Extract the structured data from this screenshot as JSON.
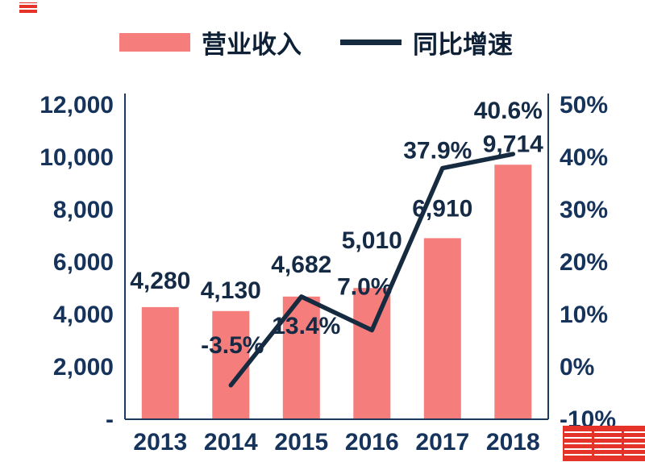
{
  "legend": {
    "items": [
      {
        "label": "营业收入",
        "type": "bar",
        "color": "#f57d7b"
      },
      {
        "label": "同比增速",
        "type": "line",
        "color": "#162b40"
      }
    ]
  },
  "chart_data": {
    "type": "bar+line",
    "categories": [
      "2013",
      "2014",
      "2015",
      "2016",
      "2017",
      "2018"
    ],
    "series": [
      {
        "name": "营业收入",
        "type": "bar",
        "axis": "left",
        "values": [
          4280,
          4130,
          4682,
          5010,
          6910,
          9714
        ],
        "labels": [
          "4,280",
          "4,130",
          "4,682",
          "5,010",
          "6,910",
          "9,714"
        ],
        "color": "#f57d7b"
      },
      {
        "name": "同比增速",
        "type": "line",
        "axis": "right",
        "values": [
          null,
          -3.5,
          13.4,
          7.0,
          37.9,
          40.6
        ],
        "labels": [
          "",
          "-3.5%",
          "13.4%",
          "7.0%",
          "37.9%",
          "40.6%"
        ],
        "color": "#162b40"
      }
    ],
    "left_axis": {
      "min": 0,
      "max": 12000,
      "step": 2000,
      "tick_labels": [
        "-",
        "2,000",
        "4,000",
        "6,000",
        "8,000",
        "10,000",
        "12,000"
      ]
    },
    "right_axis": {
      "min": -10,
      "max": 50,
      "step": 10,
      "tick_labels": [
        "-10%",
        "0%",
        "10%",
        "20%",
        "30%",
        "40%",
        "50%"
      ]
    },
    "grid": false,
    "legend_position": "top"
  }
}
